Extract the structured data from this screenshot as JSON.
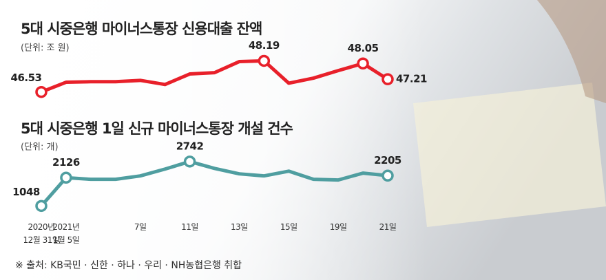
{
  "chart_data": [
    {
      "type": "line",
      "title": "5대 시중은행 마이너스통장 신용대출 잔액",
      "subtitle": "(단위: 조 원)",
      "color": "#e8202a",
      "values": [
        46.53,
        47.05,
        47.08,
        47.08,
        47.15,
        46.93,
        47.49,
        47.56,
        48.15,
        48.19,
        47.0,
        47.27,
        47.67,
        48.05,
        47.21
      ],
      "value_labels": [
        "46.53",
        null,
        null,
        null,
        null,
        null,
        null,
        null,
        null,
        "48.19",
        null,
        null,
        null,
        "48.05",
        "47.21"
      ],
      "ylim": [
        46.3,
        48.5
      ]
    },
    {
      "type": "line",
      "title": "5대 시중은행 1일 신규 마이너스통장 개설 건수",
      "subtitle": "(단위: 개)",
      "color": "#4f9ea0",
      "categories": [
        "2020년\n12월 31일",
        "2021년\n1월 5일",
        null,
        null,
        "7일",
        null,
        "11일",
        null,
        "13일",
        null,
        "15일",
        null,
        "19일",
        null,
        "21일"
      ],
      "values": [
        1048,
        2126,
        2064,
        2064,
        2195,
        2455,
        2742,
        2480,
        2273,
        2195,
        2375,
        2064,
        2038,
        2300,
        2205
      ],
      "value_labels": [
        "1048",
        "2126",
        null,
        null,
        null,
        null,
        "2742",
        null,
        null,
        null,
        null,
        null,
        null,
        null,
        "2205"
      ],
      "ylim": [
        900,
        3000
      ]
    }
  ],
  "source": "※ 출처: KB국민 · 신한 · 하나 · 우리 · NH농협은행 취합"
}
